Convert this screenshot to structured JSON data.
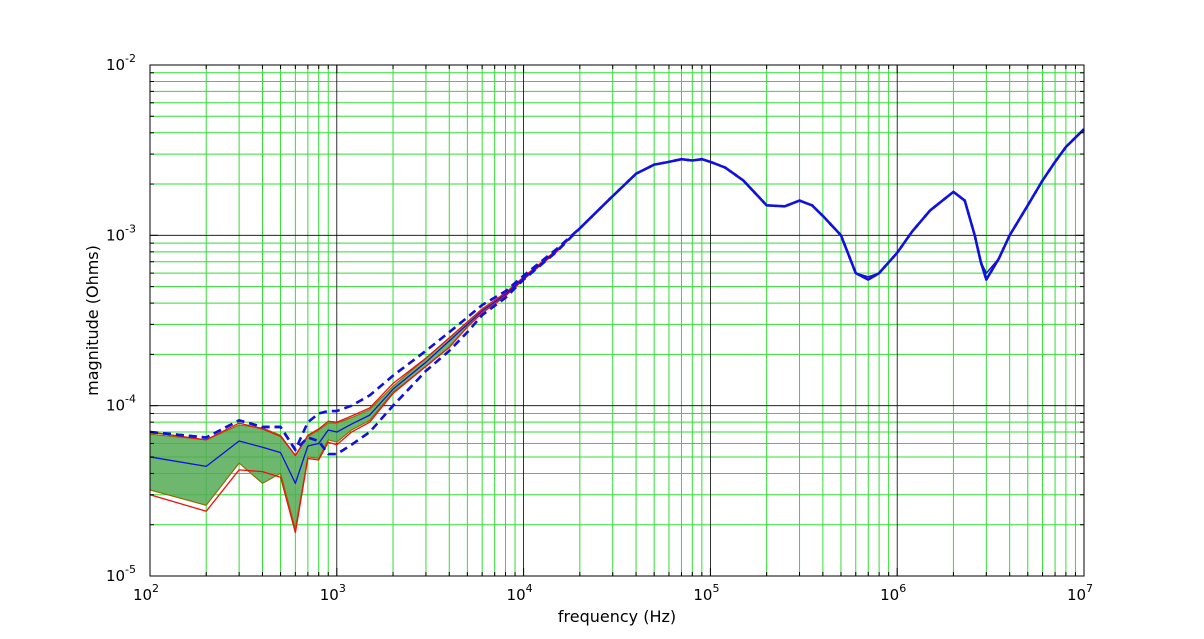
{
  "chart_data": {
    "type": "line",
    "xlabel": "frequency (Hz)",
    "ylabel": "magnitude (Ohms)",
    "x_scale": "log",
    "y_scale": "log",
    "xlim": [
      100,
      10000000
    ],
    "ylim": [
      1e-05,
      0.01
    ],
    "grid": true,
    "x_ticks": [
      {
        "base": "10",
        "exp": "2",
        "value": 100
      },
      {
        "base": "10",
        "exp": "3",
        "value": 1000
      },
      {
        "base": "10",
        "exp": "4",
        "value": 10000
      },
      {
        "base": "10",
        "exp": "5",
        "value": 100000
      },
      {
        "base": "10",
        "exp": "6",
        "value": 1000000
      },
      {
        "base": "10",
        "exp": "7",
        "value": 10000000
      }
    ],
    "y_ticks": [
      {
        "base": "10",
        "exp": "-5",
        "value": 1e-05
      },
      {
        "base": "10",
        "exp": "-4",
        "value": 0.0001
      },
      {
        "base": "10",
        "exp": "-3",
        "value": 0.001
      },
      {
        "base": "10",
        "exp": "-2",
        "value": 0.01
      }
    ],
    "colors": {
      "major_grid": "#000000",
      "minor_grid": "#33dd33",
      "band_fill": "#55aa55",
      "red": "#ee1111",
      "blue": "#1111dd",
      "olive": "#8a6d00"
    },
    "x": [
      100,
      200,
      300,
      400,
      500,
      600,
      700,
      800,
      900,
      1000,
      1200,
      1500,
      2000,
      3000,
      4000,
      5000,
      6000,
      8000,
      10000,
      15000,
      20000,
      30000,
      40000,
      50000,
      60000,
      70000,
      80000,
      90000,
      100000,
      120000,
      150000,
      200000,
      250000,
      300000,
      350000,
      400000,
      500000,
      600000,
      700000,
      800000,
      1000000,
      1200000,
      1500000,
      2000000,
      2300000,
      2600000,
      2800000,
      3000000,
      3500000,
      4000000,
      5000000,
      6000000,
      7000000,
      8000000,
      10000000
    ],
    "series": [
      {
        "name": "",
        "role": "band_upper",
        "color": "olive",
        "style": "solid",
        "values": [
          6.8e-05,
          6.3e-05,
          7.7e-05,
          7.4e-05,
          6.7e-05,
          5.1e-05,
          6.6e-05,
          7.2e-05,
          7.9e-05,
          7.9e-05,
          8.5e-05,
          9.5e-05,
          0.00013,
          0.00019,
          0.00025,
          0.00031,
          0.00037,
          0.00046,
          0.00056,
          0.00082,
          0.0011,
          0.0017,
          0.0023,
          0.0026,
          0.0027,
          0.0028,
          0.00275,
          0.0028,
          0.0027,
          0.0025,
          0.0021,
          0.0015,
          0.00148,
          0.0016,
          0.0015,
          0.0013,
          0.001,
          0.0006,
          0.00057,
          0.0006,
          0.00079,
          0.00105,
          0.0014,
          0.0018,
          0.0016,
          0.001,
          0.0007,
          0.0006,
          0.00073,
          0.001,
          0.0015,
          0.0021,
          0.0027,
          0.0033,
          0.0042
        ]
      },
      {
        "name": "",
        "role": "band_lower",
        "color": "olive",
        "style": "solid",
        "values": [
          3.2e-05,
          2.6e-05,
          4.6e-05,
          3.5e-05,
          4e-05,
          1.9e-05,
          5e-05,
          4.9e-05,
          6.3e-05,
          6.1e-05,
          7.2e-05,
          8.2e-05,
          0.00012,
          0.00017,
          0.00022,
          0.00029,
          0.00035,
          0.00044,
          0.00055,
          0.0008,
          0.0011,
          0.0017,
          0.0023,
          0.0026,
          0.0027,
          0.0028,
          0.00275,
          0.0028,
          0.0027,
          0.0025,
          0.0021,
          0.0015,
          0.00148,
          0.0016,
          0.0015,
          0.0013,
          0.001,
          0.0006,
          0.00057,
          0.0006,
          0.00079,
          0.00105,
          0.0014,
          0.0018,
          0.0016,
          0.001,
          0.0007,
          0.0006,
          0.00073,
          0.001,
          0.0015,
          0.0021,
          0.0027,
          0.0033,
          0.0042
        ]
      },
      {
        "name": "",
        "role": "line",
        "color": "red",
        "style": "solid",
        "values": [
          7e-05,
          6.3e-05,
          7.9e-05,
          7.3e-05,
          6.6e-05,
          5.1e-05,
          6.7e-05,
          7.3e-05,
          8.1e-05,
          8e-05,
          8.7e-05,
          9.7e-05,
          0.000135,
          0.00019,
          0.00025,
          0.00031,
          0.00037,
          0.00046,
          0.00057,
          0.00082,
          0.0011,
          0.0017,
          0.0023,
          0.0026,
          0.0027,
          0.0028,
          0.00275,
          0.0028,
          0.0027,
          0.0025,
          0.0021,
          0.0015,
          0.00148,
          0.0016,
          0.0015,
          0.0013,
          0.001,
          0.0006,
          0.00057,
          0.0006,
          0.00079,
          0.00105,
          0.0014,
          0.0018,
          0.0016,
          0.001,
          0.0007,
          0.0006,
          0.00073,
          0.001,
          0.0015,
          0.0021,
          0.0027,
          0.0033,
          0.0042
        ]
      },
      {
        "name": "",
        "role": "line",
        "color": "red",
        "style": "solid",
        "values": [
          3e-05,
          2.4e-05,
          4.2e-05,
          4.1e-05,
          3.8e-05,
          1.8e-05,
          4.9e-05,
          4.8e-05,
          6.1e-05,
          5.9e-05,
          7e-05,
          8e-05,
          0.000118,
          0.00017,
          0.00022,
          0.00029,
          0.00035,
          0.00044,
          0.00055,
          0.0008,
          0.0011,
          0.0017,
          0.0023,
          0.0026,
          0.0027,
          0.0028,
          0.00275,
          0.0028,
          0.0027,
          0.0025,
          0.0021,
          0.0015,
          0.00148,
          0.0016,
          0.0015,
          0.0013,
          0.001,
          0.0006,
          0.00057,
          0.0006,
          0.00079,
          0.00105,
          0.0014,
          0.0018,
          0.0016,
          0.001,
          0.0007,
          0.0006,
          0.00073,
          0.001,
          0.0015,
          0.0021,
          0.0027,
          0.0033,
          0.0042
        ]
      },
      {
        "name": "",
        "role": "line",
        "color": "blue",
        "style": "solid",
        "values": [
          5e-05,
          4.4e-05,
          6.2e-05,
          5.7e-05,
          5.3e-05,
          3.5e-05,
          5.8e-05,
          6e-05,
          7.2e-05,
          7e-05,
          7.8e-05,
          8.8e-05,
          0.000125,
          0.00018,
          0.00024,
          0.0003,
          0.00036,
          0.00045,
          0.00056,
          0.00081,
          0.0011,
          0.0017,
          0.0023,
          0.0026,
          0.0027,
          0.0028,
          0.00275,
          0.0028,
          0.0027,
          0.0025,
          0.0021,
          0.0015,
          0.00148,
          0.0016,
          0.0015,
          0.0013,
          0.001,
          0.0006,
          0.00057,
          0.0006,
          0.00079,
          0.00105,
          0.0014,
          0.0018,
          0.0016,
          0.001,
          0.0007,
          0.0006,
          0.00073,
          0.001,
          0.0015,
          0.0021,
          0.0027,
          0.0033,
          0.0042
        ]
      },
      {
        "name": "",
        "role": "line",
        "color": "blue",
        "style": "dashed",
        "values": [
          7e-05,
          6.5e-05,
          8.2e-05,
          7.5e-05,
          7.5e-05,
          5.5e-05,
          8e-05,
          9e-05,
          9.3e-05,
          9.3e-05,
          0.0001,
          0.000115,
          0.00015,
          0.00021,
          0.00027,
          0.00033,
          0.00039,
          0.00047,
          0.00058,
          0.00083,
          0.0011,
          0.0017,
          0.0023,
          0.0026,
          0.0027,
          0.0028,
          0.00275,
          0.0028,
          0.0027,
          0.0025,
          0.0021,
          0.0015,
          0.00148,
          0.0016,
          0.0015,
          0.0013,
          0.001,
          0.0006,
          0.00055,
          0.0006,
          0.00079,
          0.00105,
          0.0014,
          0.0018,
          0.0016,
          0.001,
          0.0007,
          0.00055,
          0.00073,
          0.001,
          0.0015,
          0.0021,
          0.0027,
          0.0033,
          0.0042
        ]
      },
      {
        "name": "",
        "role": "line",
        "color": "blue",
        "style": "dashed",
        "values": [
          7e-05,
          6.5e-05,
          8.2e-05,
          7.5e-05,
          7.5e-05,
          5.5e-05,
          6.5e-05,
          6.2e-05,
          5.2e-05,
          5.2e-05,
          5.9e-05,
          7e-05,
          0.0001,
          0.00016,
          0.00021,
          0.00027,
          0.00034,
          0.00043,
          0.00055,
          0.0008,
          0.0011,
          0.0017,
          0.0023,
          0.0026,
          0.0027,
          0.0028,
          0.00275,
          0.0028,
          0.0027,
          0.0025,
          0.0021,
          0.0015,
          0.00148,
          0.0016,
          0.0015,
          0.0013,
          0.001,
          0.0006,
          0.00055,
          0.0006,
          0.00079,
          0.00105,
          0.0014,
          0.0018,
          0.0016,
          0.001,
          0.0007,
          0.00055,
          0.00073,
          0.001,
          0.0015,
          0.0021,
          0.0027,
          0.0033,
          0.0042
        ]
      }
    ]
  }
}
